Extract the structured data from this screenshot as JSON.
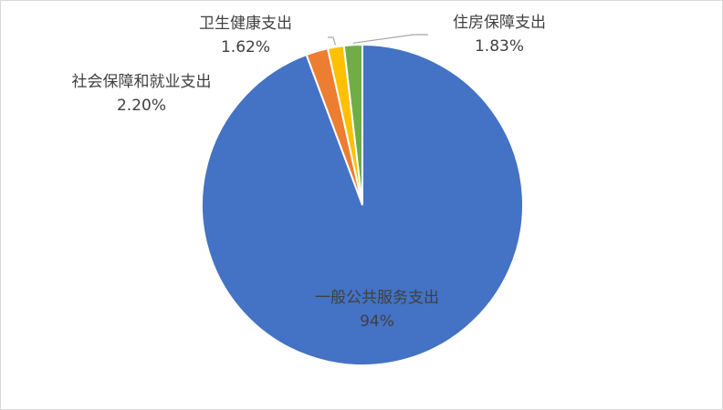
{
  "chart_data": {
    "type": "pie",
    "title": "",
    "slices": [
      {
        "name": "一般公共服务支出",
        "value": 94,
        "value_label": "94%",
        "color": "#4472C4"
      },
      {
        "name": "社会保障和就业支出",
        "value": 2.2,
        "value_label": "2.20%",
        "color": "#ED7D31"
      },
      {
        "name": "卫生健康支出",
        "value": 1.62,
        "value_label": "1.62%",
        "color": "#FFC000"
      },
      {
        "name": "住房保障支出",
        "value": 1.83,
        "value_label": "1.83%",
        "color": "#70AD47"
      }
    ],
    "start_angle_deg": 0,
    "direction": "clockwise",
    "legend": "none",
    "labels": "category-and-value"
  }
}
